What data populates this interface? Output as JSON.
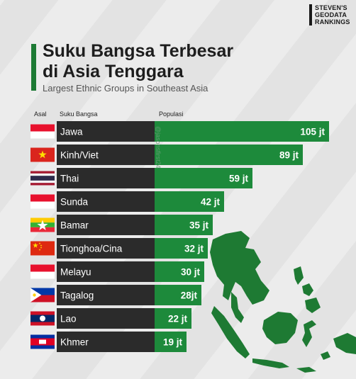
{
  "brand": {
    "lines": [
      "STEVEN'S",
      "GEODATA",
      "RANKINGS"
    ]
  },
  "header": {
    "title_line1": "Suku Bangsa Terbesar",
    "title_line2": "di Asia Tenggara",
    "subtitle": "Largest Ethnic Groups in Southeast Asia"
  },
  "columns": {
    "origin": "Asal",
    "group": "Suku Bangsa",
    "population": "Populasi"
  },
  "watermark": "@jasonsfirst24",
  "colors": {
    "bar": "#1d8a3b",
    "bar_dark": "#1d7a34",
    "label_bg": "#2b2b2b",
    "map": "#1e7a33"
  },
  "chart_data": {
    "type": "bar",
    "title": "Suku Bangsa Terbesar di Asia Tenggara",
    "xlabel": "Populasi",
    "ylabel": "Suku Bangsa",
    "unit": "jt",
    "categories": [
      "Jawa",
      "Kinh/Viet",
      "Thai",
      "Sunda",
      "Bamar",
      "Tionghoa/Cina",
      "Melayu",
      "Tagalog",
      "Lao",
      "Khmer"
    ],
    "values": [
      105,
      89,
      59,
      42,
      35,
      32,
      30,
      28,
      22,
      19
    ],
    "value_labels": [
      "105 jt",
      "89 jt",
      "59 jt",
      "42 jt",
      "35 jt",
      "32 jt",
      "30 jt",
      "28jt",
      "22 jt",
      "19 jt"
    ],
    "flags": [
      "flag-indonesia",
      "flag-vietnam",
      "flag-thailand",
      "flag-indonesia",
      "flag-myanmar",
      "flag-china",
      "flag-indonesia",
      "flag-philippines",
      "flag-laos",
      "flag-cambodia"
    ],
    "xlim": [
      0,
      105
    ]
  }
}
